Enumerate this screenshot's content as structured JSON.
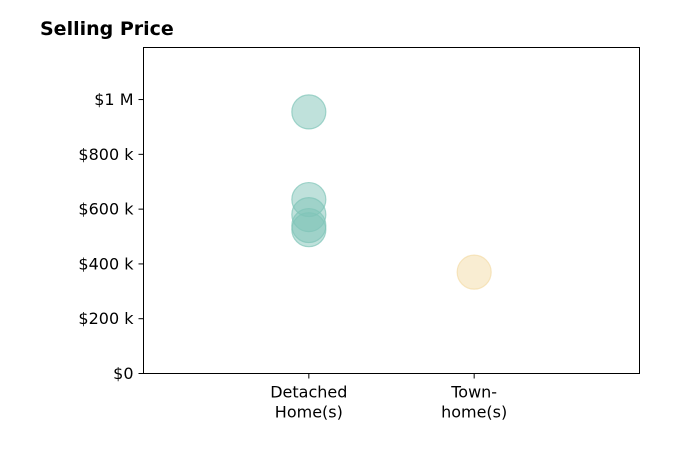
{
  "chart_data": {
    "type": "scatter",
    "title": "Selling Price",
    "xlabel": "",
    "ylabel": "",
    "categories": [
      [
        "Detached",
        "Home(s)"
      ],
      [
        "Town-",
        "home(s)"
      ]
    ],
    "x_range": [
      0,
      3
    ],
    "y_range": [
      0,
      1190000
    ],
    "y_ticks": [
      0,
      200000,
      400000,
      600000,
      800000,
      1000000
    ],
    "y_tick_labels": [
      "$0",
      "$200 k",
      "$400 k",
      "$600 k",
      "$800 k",
      "$1 M"
    ],
    "grid": false,
    "series": [
      {
        "category_index": 0,
        "color": "#7fc4b8",
        "values": [
          955000,
          635000,
          580000,
          540000,
          525000
        ]
      },
      {
        "category_index": 1,
        "color": "#f3dba6",
        "values": [
          370000
        ]
      }
    ]
  }
}
